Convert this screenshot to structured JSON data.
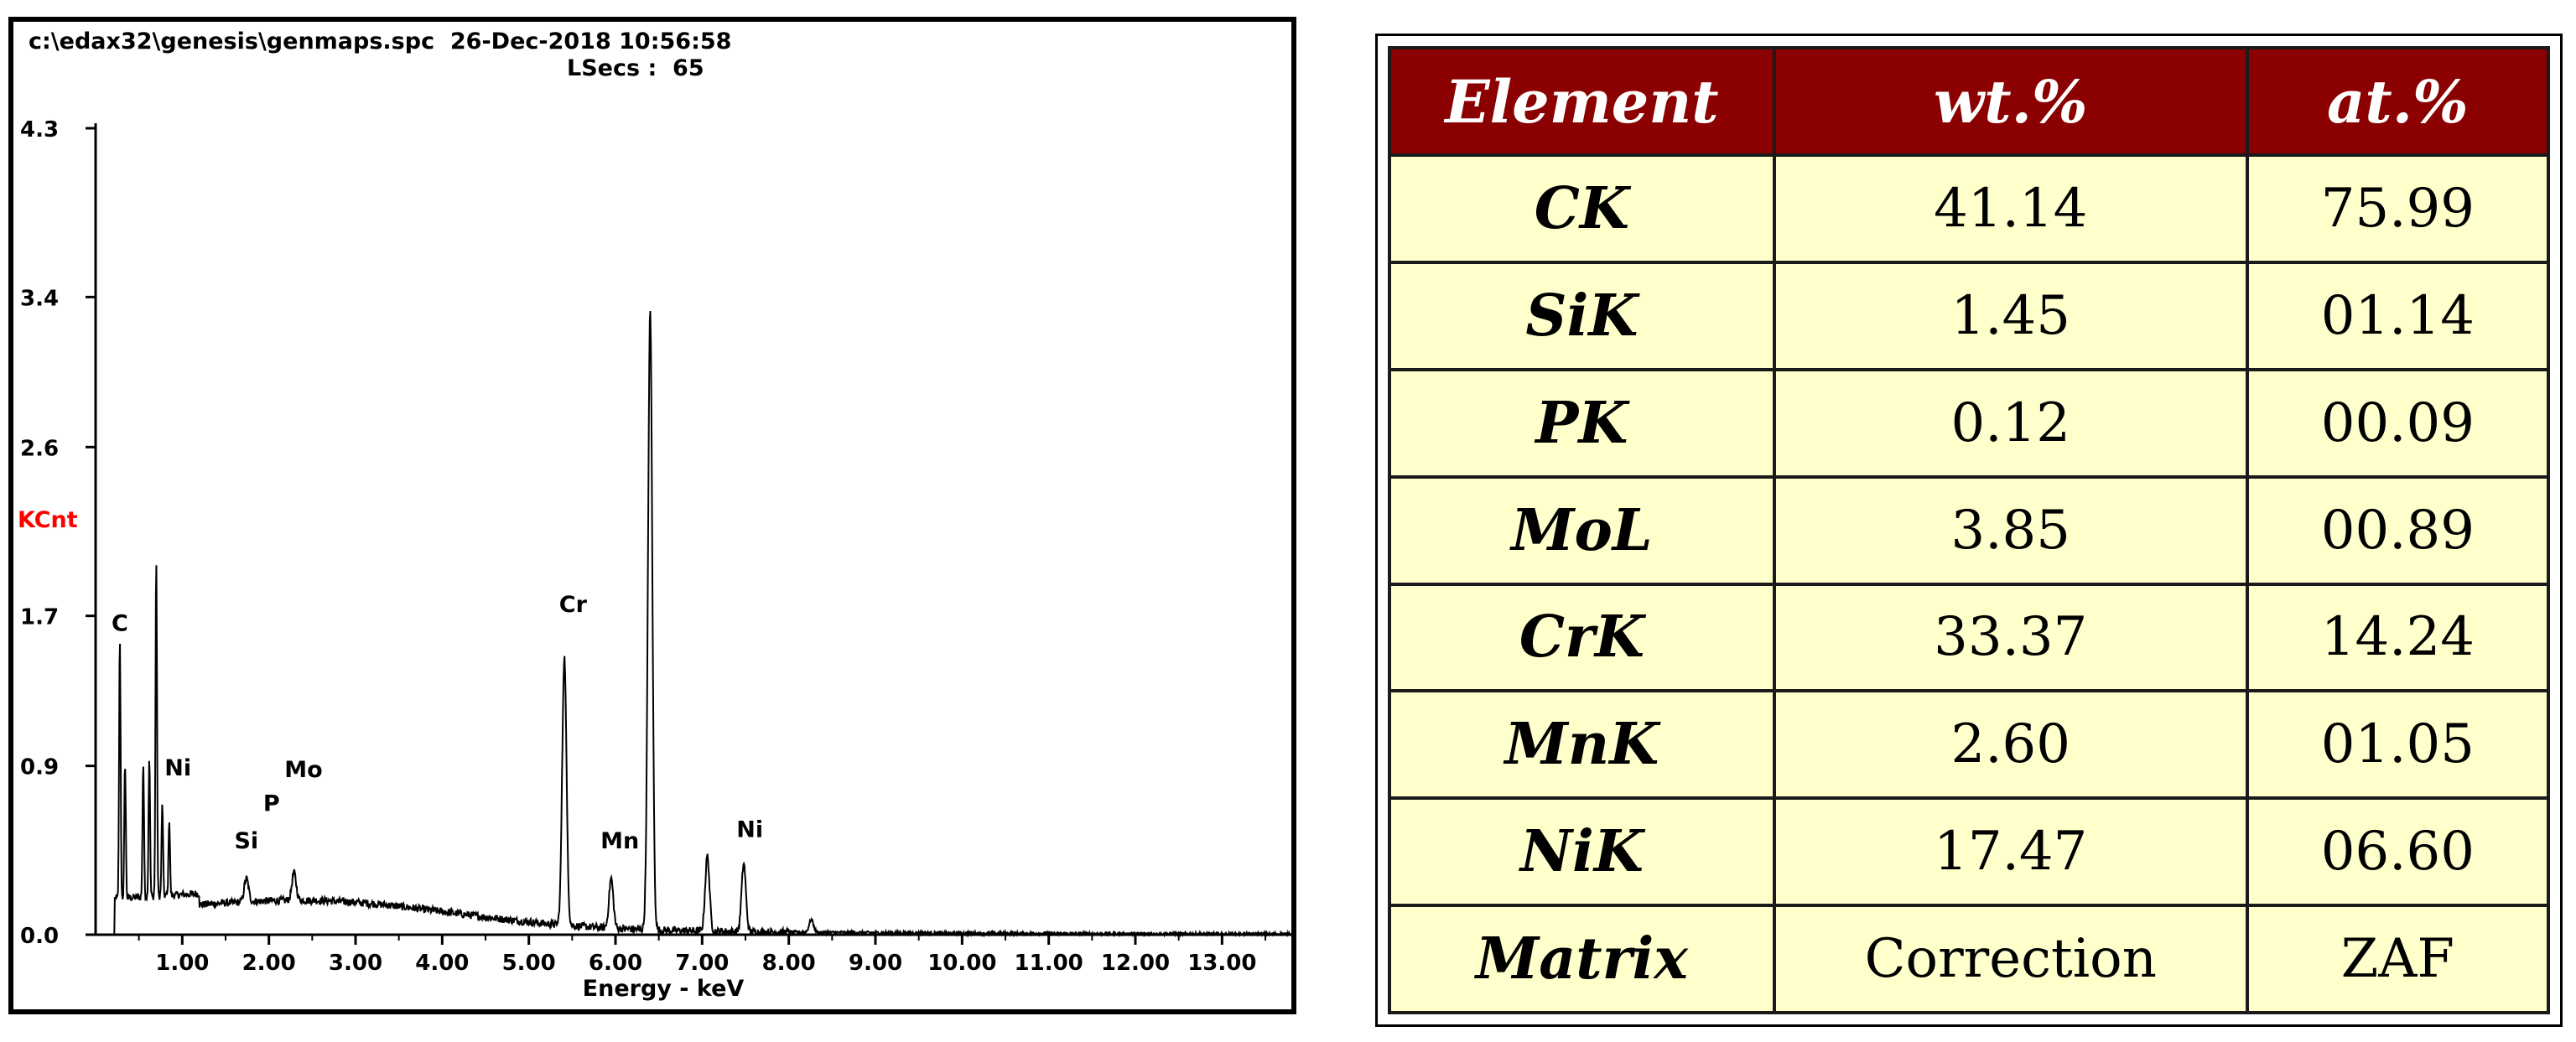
{
  "spectrum": {
    "file_info": "c:\\edax32\\genesis\\genmaps.spc  26-Dec-2018 10:56:58",
    "lsecs": "LSecs :  65",
    "colors": {
      "axis": "#000000",
      "ylabel": "#ff0000",
      "trace": "#000000"
    }
  },
  "chart_data": {
    "type": "line",
    "title": "",
    "xlabel": "Energy - keV",
    "ylabel": "KCnt",
    "xlim": [
      0,
      13.8
    ],
    "ylim": [
      0,
      4.3
    ],
    "x_ticks": [
      1.0,
      2.0,
      3.0,
      4.0,
      5.0,
      6.0,
      7.0,
      8.0,
      9.0,
      10.0,
      11.0,
      12.0,
      13.0
    ],
    "x_tick_labels": [
      "1.00",
      "2.00",
      "3.00",
      "4.00",
      "5.00",
      "6.00",
      "7.00",
      "8.00",
      "9.00",
      "10.00",
      "11.00",
      "12.00",
      "13.00"
    ],
    "y_ticks": [
      0.0,
      0.9,
      1.7,
      2.6,
      3.4,
      4.3
    ],
    "y_tick_labels": [
      "0.0",
      "0.9",
      "1.7",
      "2.6",
      "3.4",
      "4.3"
    ],
    "peaks": [
      {
        "x": 0.28,
        "y": 1.58
      },
      {
        "x": 0.34,
        "y": 0.92
      },
      {
        "x": 0.55,
        "y": 0.92
      },
      {
        "x": 0.62,
        "y": 0.95
      },
      {
        "x": 0.7,
        "y": 2.02
      },
      {
        "x": 0.77,
        "y": 0.7
      },
      {
        "x": 0.85,
        "y": 0.62
      },
      {
        "x": 1.74,
        "y": 0.3
      },
      {
        "x": 2.29,
        "y": 0.33
      },
      {
        "x": 5.41,
        "y": 1.48
      },
      {
        "x": 5.95,
        "y": 0.3
      },
      {
        "x": 6.4,
        "y": 3.32
      },
      {
        "x": 7.06,
        "y": 0.42
      },
      {
        "x": 7.48,
        "y": 0.38
      },
      {
        "x": 8.26,
        "y": 0.08
      }
    ],
    "annotations": [
      {
        "label": "C",
        "x": 0.28,
        "y": 1.62
      },
      {
        "label": "Ni",
        "x": 0.95,
        "y": 0.85
      },
      {
        "label": "Si",
        "x": 1.74,
        "y": 0.46
      },
      {
        "label": "P",
        "x": 2.03,
        "y": 0.66
      },
      {
        "label": "Mo",
        "x": 2.4,
        "y": 0.84
      },
      {
        "label": "Cr",
        "x": 5.51,
        "y": 1.72
      },
      {
        "label": "Mn",
        "x": 6.05,
        "y": 0.46
      },
      {
        "label": "Ni",
        "x": 7.55,
        "y": 0.52
      }
    ]
  },
  "composition_table": {
    "headers": [
      "Element",
      "wt.%",
      "at.%"
    ],
    "rows": [
      [
        "CK",
        "41.14",
        "75.99"
      ],
      [
        "SiK",
        "1.45",
        "01.14"
      ],
      [
        "PK",
        "0.12",
        "00.09"
      ],
      [
        "MoL",
        "3.85",
        "00.89"
      ],
      [
        "CrK",
        "33.37",
        "14.24"
      ],
      [
        "MnK",
        "2.60",
        "01.05"
      ],
      [
        "NiK",
        "17.47",
        "06.60"
      ],
      [
        "Matrix",
        "Correction",
        "ZAF"
      ]
    ],
    "colors": {
      "header_bg": "#8b0000",
      "header_text": "#ffffff",
      "cell_bg": "#ffffcc"
    }
  }
}
